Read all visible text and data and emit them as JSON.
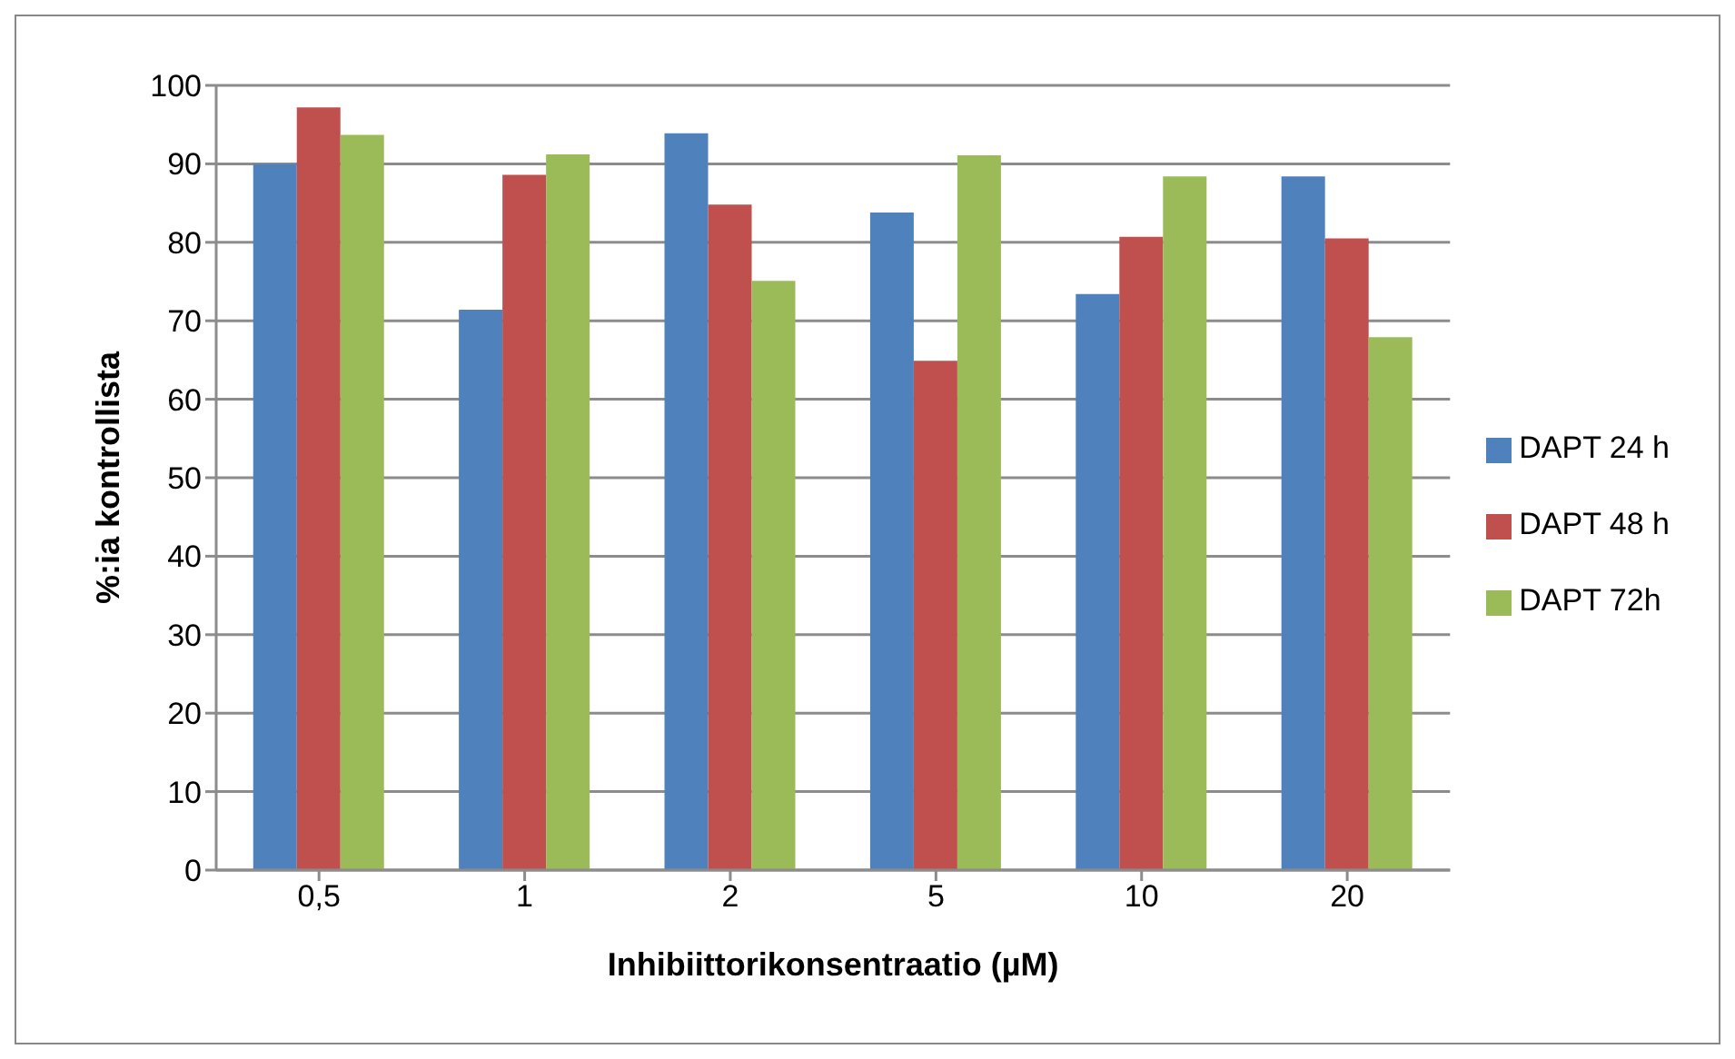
{
  "chart_data": {
    "type": "bar",
    "xlabel": "Inhibiittorikonsentraatio (µM)",
    "ylabel": "%:ia kontrollista",
    "categories": [
      "0,5",
      "1",
      "2",
      "5",
      "10",
      "20"
    ],
    "series": [
      {
        "name": "DAPT 24 h",
        "color": "#4f81bd",
        "values": [
          90,
          71.4,
          93.9,
          83.8,
          73.4,
          88.4
        ]
      },
      {
        "name": "DAPT 48 h",
        "color": "#c0504d",
        "values": [
          97.2,
          88.6,
          84.8,
          64.9,
          80.7,
          80.5
        ]
      },
      {
        "name": "DAPT 72h",
        "color": "#9bbb59",
        "values": [
          93.7,
          91.2,
          75.1,
          91.1,
          88.4,
          67.9
        ]
      }
    ],
    "ylim": [
      0,
      100
    ],
    "yticks": [
      0,
      10,
      20,
      30,
      40,
      50,
      60,
      70,
      80,
      90,
      100
    ],
    "grid": "y",
    "legend": "right"
  }
}
